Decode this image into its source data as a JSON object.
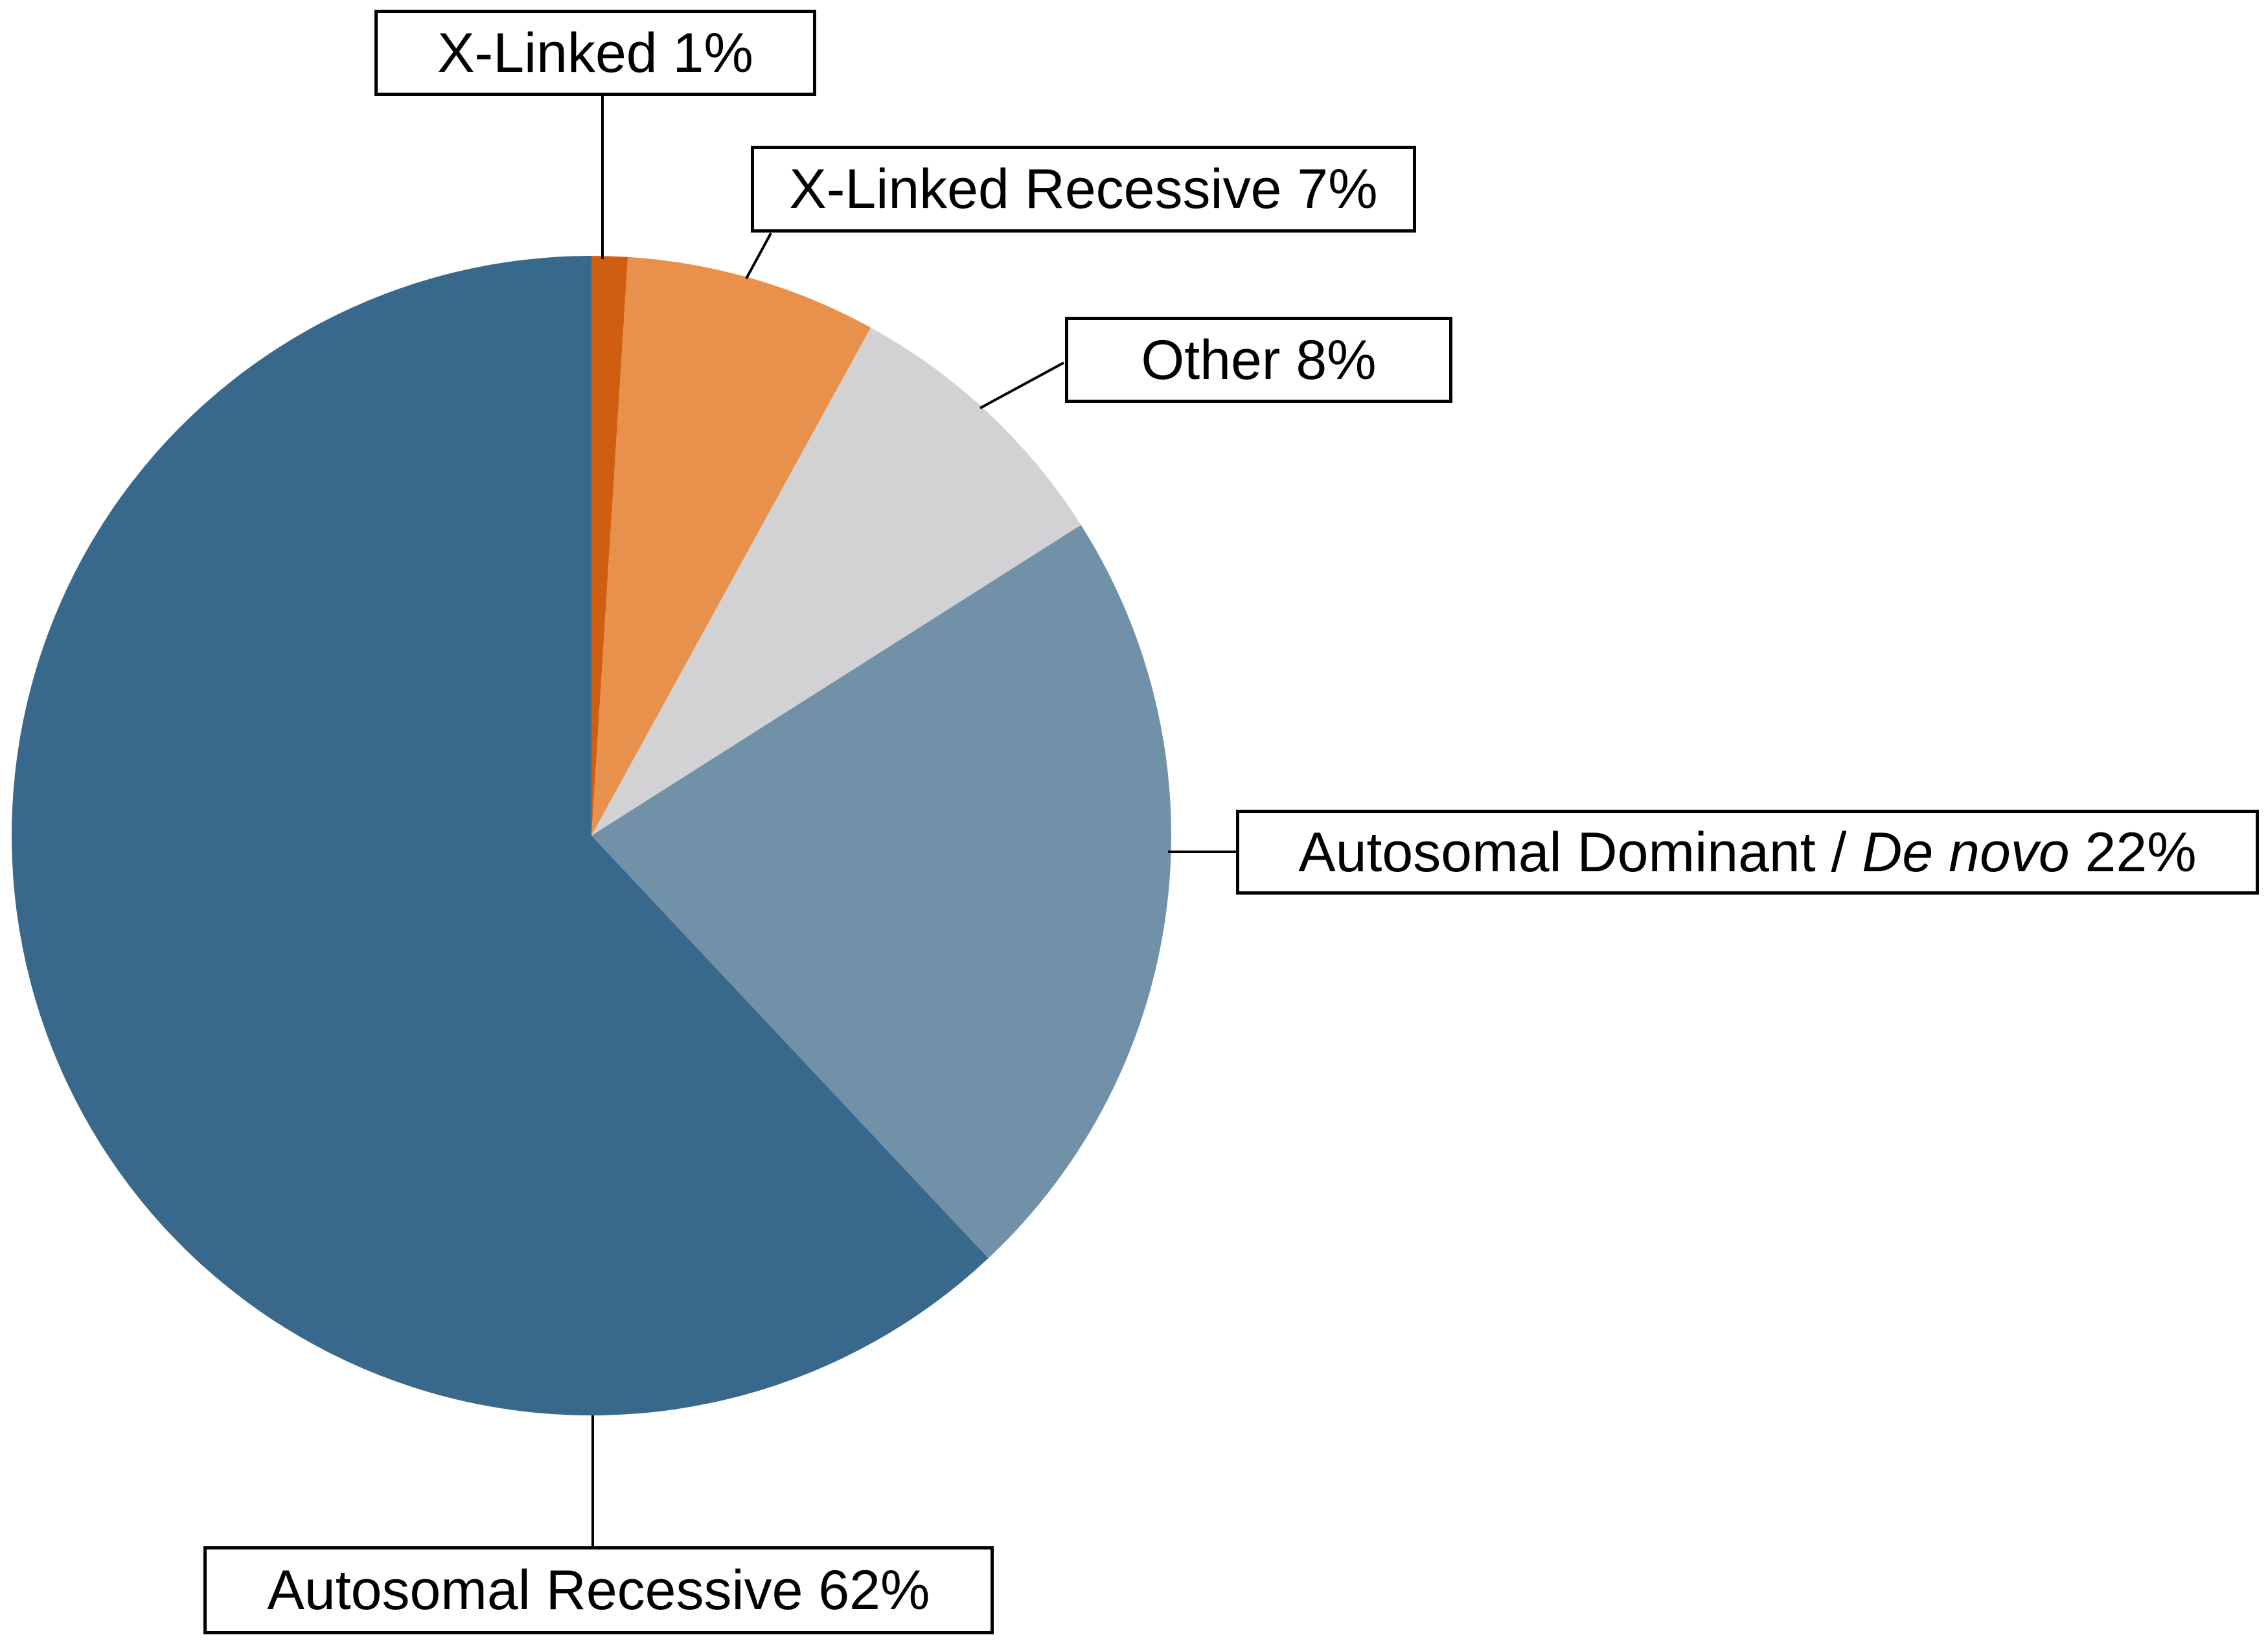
{
  "chart_data": {
    "type": "pie",
    "unit": "%",
    "start_angle_deg": 0,
    "direction": "clockwise",
    "legend_position": "callout-boxes",
    "slices": [
      {
        "label": "X-Linked",
        "value": 1,
        "color": "#cf5e11"
      },
      {
        "label": "X-Linked Recessive",
        "value": 7,
        "color": "#e8914c"
      },
      {
        "label": "Other",
        "value": 8,
        "color": "#d2d2d4"
      },
      {
        "label": "Autosomal Dominant / De novo",
        "value": 22,
        "color": "#7191a8"
      },
      {
        "label": "Autosomal Recessive",
        "value": 62,
        "color": "#38688b"
      }
    ]
  },
  "labels": {
    "xlinked": {
      "text": "X-Linked 1%"
    },
    "xlinked_recessive": {
      "text": "X-Linked Recessive 7%"
    },
    "other": {
      "text": "Other 8%"
    },
    "autosomal_dominant": {
      "prefix": "Autosomal Dominant / ",
      "italic": "De novo",
      "suffix": " 22%"
    },
    "autosomal_recessive": {
      "text": "Autosomal Recessive 62%"
    }
  }
}
